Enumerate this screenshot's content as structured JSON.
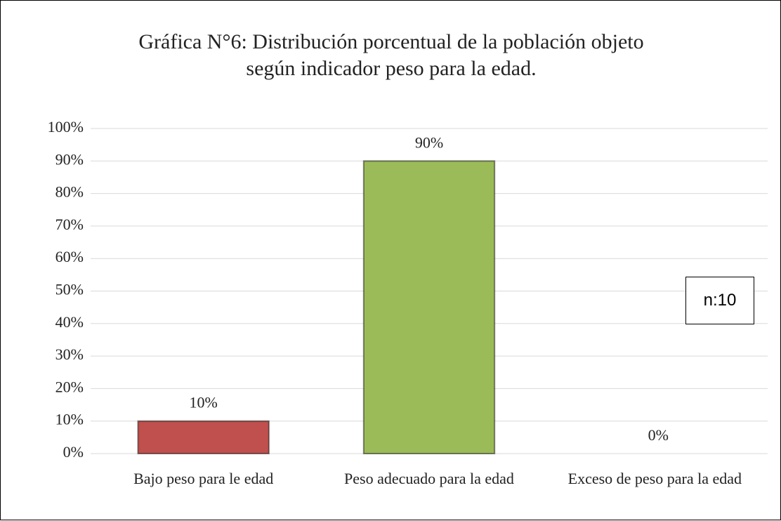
{
  "chart_data": {
    "type": "bar",
    "title": "Gráfica N°6: Distribución porcentual de la población objeto según indicador peso para la edad.",
    "categories": [
      "Bajo peso para le edad",
      "Peso adecuado para la edad",
      "Exceso de peso para la edad"
    ],
    "values": [
      10,
      90,
      0
    ],
    "value_labels": [
      "10%",
      "90%",
      "0%"
    ],
    "colors": [
      "#c0504d",
      "#9bbb59",
      "#4f81bd"
    ],
    "ylim": [
      0,
      100
    ],
    "yticks": [
      {
        "value": 0,
        "label": "0%"
      },
      {
        "value": 10,
        "label": "10%"
      },
      {
        "value": 20,
        "label": "20%"
      },
      {
        "value": 30,
        "label": "30%"
      },
      {
        "value": 40,
        "label": "40%"
      },
      {
        "value": 50,
        "label": "50%"
      },
      {
        "value": 60,
        "label": "60%"
      },
      {
        "value": 70,
        "label": "70%"
      },
      {
        "value": 80,
        "label": "80%"
      },
      {
        "value": 90,
        "label": "90%"
      },
      {
        "value": 100,
        "label": "100%"
      }
    ],
    "grid": true,
    "annotation": "n:10"
  }
}
